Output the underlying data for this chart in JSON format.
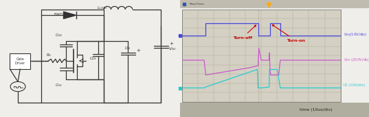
{
  "fig_width": 5.37,
  "fig_height": 1.71,
  "dpi": 100,
  "circuit_bg": "#f0eeeb",
  "scope_outer_bg": "#c8c5bc",
  "scope_plot_bg": "#cccab8",
  "scope_inner_bg": "#d4d1c4",
  "vgs_color": "#4444dd",
  "vds_color": "#cc55cc",
  "id_color": "#22cccc",
  "grid_color": "#aaa898",
  "dashed_line_color": "#888880",
  "orange_marker": "#ffaa00",
  "turnoff_label": "Turn-off",
  "turnon_label": "Turn-on",
  "vgs_label": "Vᴳₛ(10V/div)",
  "vds_label": "Vᴰₛ (250V/div)",
  "id_label": "ID (10A/div)",
  "xlabel": "time (10us/div)",
  "annotation_color": "#cc0000",
  "circ_color": "#333333",
  "status_bar_bg": "#b0ae9e",
  "scope_frame_bg": "#b8b5a8"
}
